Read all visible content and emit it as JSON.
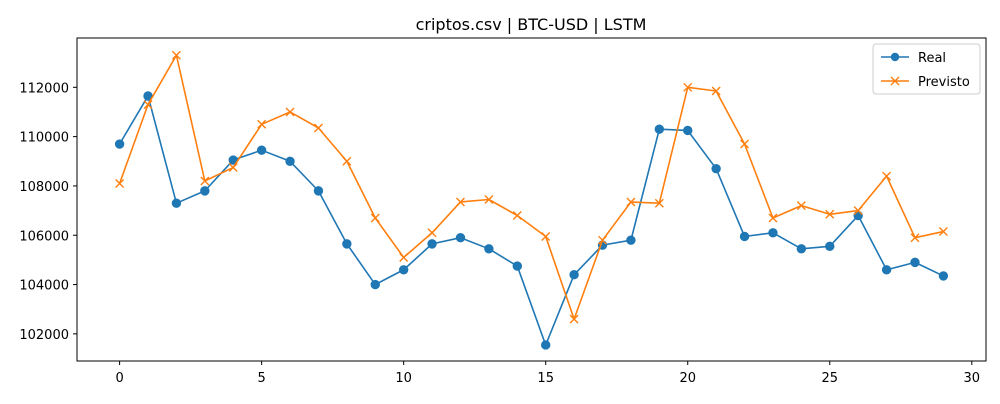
{
  "chart_data": {
    "type": "line",
    "title": "criptos.csv | BTC-USD | LSTM",
    "xlabel": "",
    "ylabel": "",
    "xlim": [
      -1.5,
      30.5
    ],
    "ylim": [
      100900,
      114000
    ],
    "x_ticks": [
      0,
      5,
      10,
      15,
      20,
      25,
      30
    ],
    "x_tick_labels": [
      "0",
      "5",
      "10",
      "15",
      "20",
      "25",
      "30"
    ],
    "y_ticks": [
      102000,
      104000,
      106000,
      108000,
      110000,
      112000
    ],
    "y_tick_labels": [
      "102000",
      "104000",
      "106000",
      "108000",
      "110000",
      "112000"
    ],
    "grid": false,
    "legend_position": "top-right",
    "x": [
      0,
      1,
      2,
      3,
      4,
      5,
      6,
      7,
      8,
      9,
      10,
      11,
      12,
      13,
      14,
      15,
      16,
      17,
      18,
      19,
      20,
      21,
      22,
      23,
      24,
      25,
      26,
      27,
      28,
      29
    ],
    "series": [
      {
        "name": "Real",
        "color": "#1f77b4",
        "marker": "circle",
        "values": [
          109700,
          111650,
          107300,
          107800,
          109050,
          109450,
          109000,
          107800,
          105650,
          104000,
          104600,
          105650,
          105900,
          105450,
          104750,
          101550,
          104400,
          105600,
          105800,
          110300,
          110250,
          108700,
          105950,
          106100,
          105450,
          105550,
          106800,
          104600,
          104900,
          104350
        ]
      },
      {
        "name": "Previsto",
        "color": "#ff7f0e",
        "marker": "x",
        "values": [
          108100,
          111300,
          113300,
          108200,
          108750,
          110500,
          111000,
          110350,
          109000,
          106700,
          105100,
          106100,
          107350,
          107450,
          106800,
          105950,
          102600,
          105800,
          107350,
          107300,
          112000,
          111850,
          109700,
          106700,
          107200,
          106850,
          107000,
          108400,
          105900,
          106150
        ]
      }
    ]
  }
}
